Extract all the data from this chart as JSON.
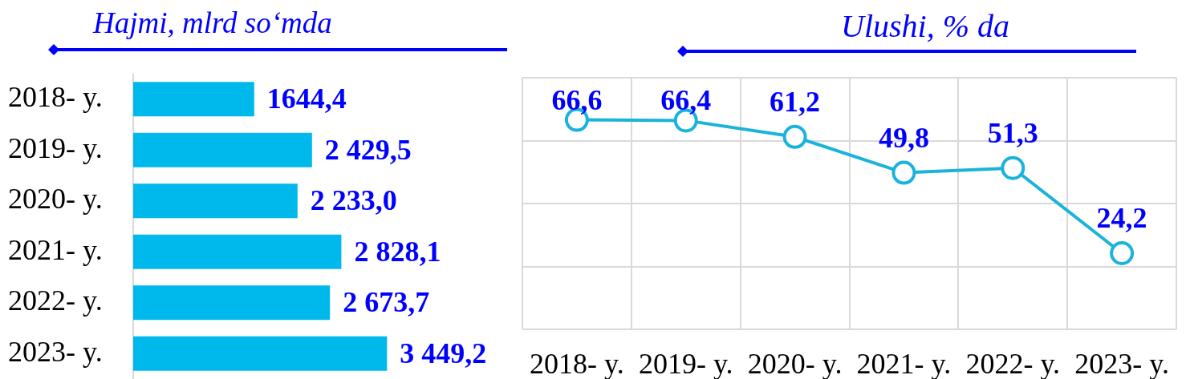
{
  "chart_data": [
    {
      "type": "bar",
      "orientation": "horizontal",
      "title": "Hajmi, mlrd so‘mda",
      "categories": [
        "2018- y.",
        "2019- y.",
        "2020- y.",
        "2021- y.",
        "2022- y.",
        "2023- y."
      ],
      "values": [
        1644.4,
        2429.5,
        2233.0,
        2828.1,
        2673.7,
        3449.2
      ],
      "color": "#00b9ec",
      "value_labels": [
        "1644,4",
        "2 429,5",
        "2 233,0",
        "2 828,1",
        "2 673,7",
        "3 449,2"
      ],
      "tick_labels": "y"
    },
    {
      "type": "line",
      "title": "Ulushi, % da",
      "categories": [
        "2018- y.",
        "2019- y.",
        "2020- y.",
        "2021- y.",
        "2022- y.",
        "2023- y."
      ],
      "values": [
        66.6,
        66.4,
        61.2,
        49.8,
        51.3,
        24.2
      ],
      "color": "#1ab3dc",
      "marker": "circle",
      "value_labels": [
        "66,6",
        "66,4",
        "61,2",
        "49,8",
        "51,3",
        "24,2"
      ],
      "ylim": [
        0,
        80
      ],
      "yticks": [
        {
          "value": 0,
          "label": null
        },
        {
          "value": 20,
          "label": null
        },
        {
          "value": 40,
          "label": null
        },
        {
          "value": 60,
          "label": null
        },
        {
          "value": 80,
          "label": null
        }
      ],
      "grid": true,
      "tick_labels": "x"
    }
  ]
}
